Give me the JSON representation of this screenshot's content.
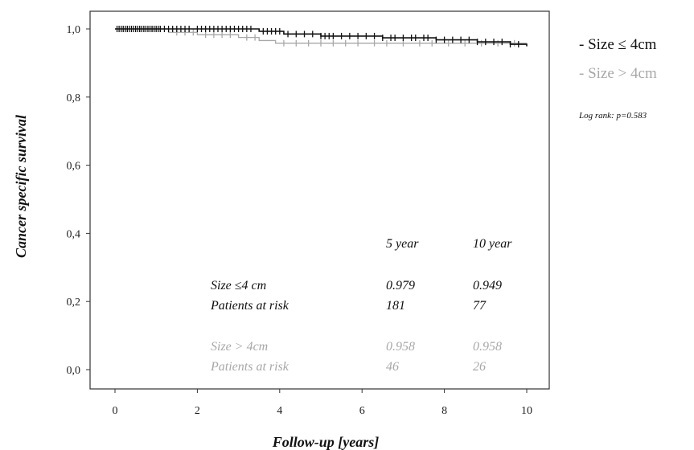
{
  "chart_data": {
    "type": "line",
    "title": "",
    "xlabel": "Follow-up [years]",
    "ylabel": "Cancer specific survival",
    "xlim": [
      0,
      10
    ],
    "ylim": [
      0,
      1
    ],
    "x_ticks": [
      "0",
      "2",
      "4",
      "6",
      "8",
      "10"
    ],
    "y_ticks": [
      "0,0",
      "0,2",
      "0,4",
      "0,6",
      "0,8",
      "1,0"
    ],
    "grid": false,
    "legend_position": "right",
    "colors": {
      "small": "#111111",
      "large": "#a8a8a8"
    },
    "series": [
      {
        "name": "Size ≤ 4cm",
        "legend_label": "- Size ≤ 4cm",
        "steps": [
          [
            0,
            1.0
          ],
          [
            3.5,
            0.993
          ],
          [
            4.1,
            0.985
          ],
          [
            5.0,
            0.979
          ],
          [
            6.5,
            0.974
          ],
          [
            7.8,
            0.968
          ],
          [
            8.8,
            0.962
          ],
          [
            9.6,
            0.955
          ],
          [
            10.0,
            0.949
          ]
        ],
        "censor_x": [
          0.05,
          0.1,
          0.15,
          0.2,
          0.25,
          0.3,
          0.35,
          0.4,
          0.45,
          0.5,
          0.55,
          0.6,
          0.65,
          0.7,
          0.75,
          0.8,
          0.85,
          0.9,
          0.95,
          1.0,
          1.05,
          1.1,
          1.2,
          1.3,
          1.4,
          1.5,
          1.6,
          1.7,
          1.8,
          2.0,
          2.1,
          2.2,
          2.3,
          2.4,
          2.5,
          2.6,
          2.7,
          2.8,
          2.9,
          3.0,
          3.1,
          3.2,
          3.3,
          3.6,
          3.7,
          3.8,
          3.9,
          4.0,
          4.2,
          4.4,
          4.6,
          4.8,
          5.0,
          5.1,
          5.2,
          5.3,
          5.5,
          5.7,
          5.9,
          6.1,
          6.3,
          6.5,
          6.7,
          6.8,
          7.0,
          7.2,
          7.3,
          7.5,
          7.6,
          7.8,
          8.0,
          8.2,
          8.4,
          8.6,
          8.8,
          9.0,
          9.2,
          9.4,
          9.6,
          9.8
        ]
      },
      {
        "name": "Size > 4cm",
        "legend_label": "- Size > 4cm",
        "steps": [
          [
            0,
            1.0
          ],
          [
            1.3,
            0.99
          ],
          [
            2.0,
            0.983
          ],
          [
            3.0,
            0.975
          ],
          [
            3.5,
            0.966
          ],
          [
            3.9,
            0.958
          ],
          [
            10.0,
            0.958
          ]
        ],
        "censor_x": [
          0.3,
          0.6,
          0.9,
          1.1,
          1.5,
          1.7,
          1.9,
          2.2,
          2.4,
          2.6,
          2.8,
          3.2,
          3.4,
          4.1,
          4.4,
          4.7,
          5.0,
          5.3,
          5.6,
          5.9,
          6.3,
          6.6,
          7.0,
          7.4,
          7.7,
          8.1,
          8.5,
          8.9,
          9.3,
          9.7
        ]
      }
    ],
    "table": {
      "headers": [
        "5 year",
        "10 year"
      ],
      "rows": [
        {
          "label": "Size ≤4 cm",
          "values": [
            "0.979",
            "0.949"
          ],
          "group": "small"
        },
        {
          "label": "Patients at risk",
          "values": [
            "181",
            "77"
          ],
          "group": "small"
        },
        {
          "label": "Size > 4cm",
          "values": [
            "0.958",
            "0.958"
          ],
          "group": "large"
        },
        {
          "label": "Patients at risk",
          "values": [
            "46",
            "26"
          ],
          "group": "large"
        }
      ]
    },
    "annotation": "Log rank: p=0.583"
  }
}
